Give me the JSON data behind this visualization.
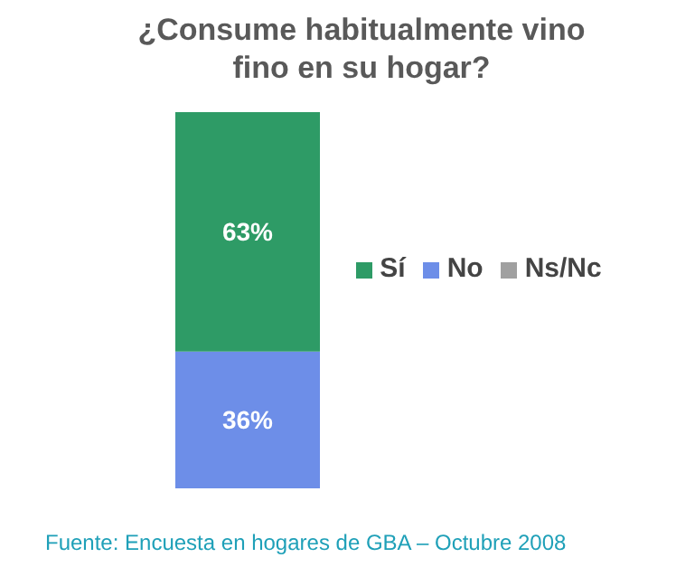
{
  "chart_data": {
    "type": "bar",
    "title": "¿Consume habitualmente vino fino en su hogar?",
    "categories": [
      null
    ],
    "stacked": true,
    "legend": "right",
    "data_labels": true,
    "series": [
      {
        "name": "No",
        "color": "#6d8ee8",
        "values": [
          36
        ],
        "value_labels": [
          "36%"
        ]
      },
      {
        "name": "Sí",
        "color": "#2e9b66",
        "values": [
          63
        ],
        "value_labels": [
          "63%"
        ]
      },
      {
        "name": "Ns/Nc",
        "color": "#a0a0a0",
        "values": [
          null
        ]
      }
    ],
    "annotations": [
      "Fuente: Encuesta en hogares de GBA – Octubre 2008"
    ]
  }
}
